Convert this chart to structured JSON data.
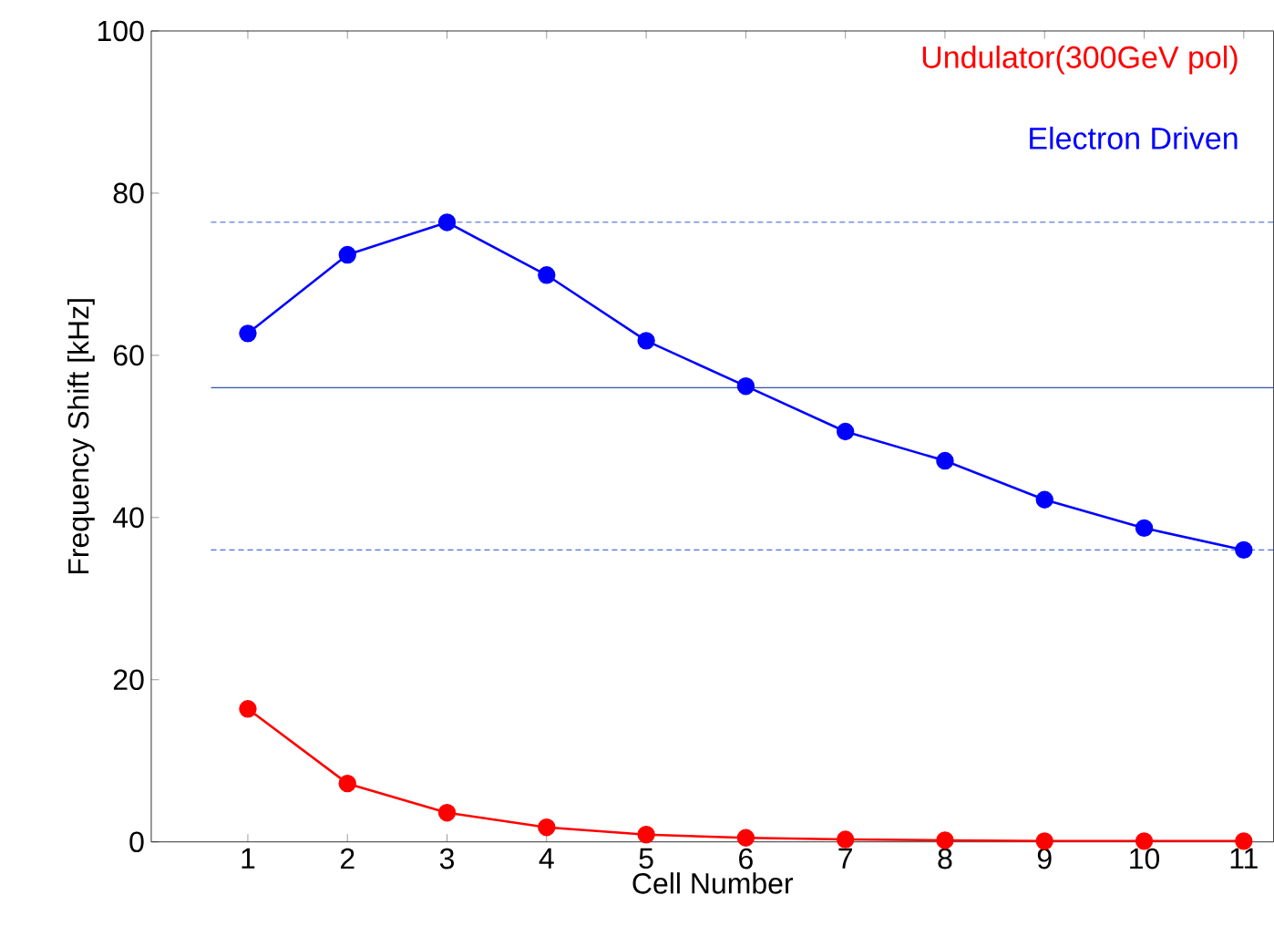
{
  "chart_data": {
    "type": "line",
    "xlabel": "Cell Number",
    "ylabel": "Frequency Shift [kHz]",
    "x": [
      1,
      2,
      3,
      4,
      5,
      6,
      7,
      8,
      9,
      10,
      11
    ],
    "xlim": [
      0.03,
      11.3
    ],
    "xticks": [
      1,
      2,
      3,
      4,
      5,
      6,
      7,
      8,
      9,
      10,
      11
    ],
    "ylim": [
      0,
      100
    ],
    "yticks": [
      0,
      20,
      40,
      60,
      80,
      100
    ],
    "marker": "circle",
    "line_style": "solid",
    "grid": false,
    "legend": false,
    "series": [
      {
        "name": "Electron Driven",
        "color": "#0000ff",
        "values": [
          62.7,
          72.4,
          76.4,
          69.9,
          61.8,
          56.2,
          50.6,
          47.0,
          42.2,
          38.7,
          36.0
        ]
      },
      {
        "name": "Undulator(300GeV pol)",
        "color": "#ff0000",
        "values": [
          16.4,
          7.2,
          3.6,
          1.8,
          0.9,
          0.5,
          0.3,
          0.2,
          0.1,
          0.1,
          0.1
        ]
      }
    ],
    "ref_lines": [
      {
        "axis": "y",
        "value": 76.4,
        "color": "#4a6fd8",
        "line_style": "dashed"
      },
      {
        "axis": "y",
        "value": 56.0,
        "color": "#3355aa",
        "line_style": "solid"
      },
      {
        "axis": "y",
        "value": 36.0,
        "color": "#4a6fd8",
        "line_style": "dashed"
      }
    ]
  }
}
